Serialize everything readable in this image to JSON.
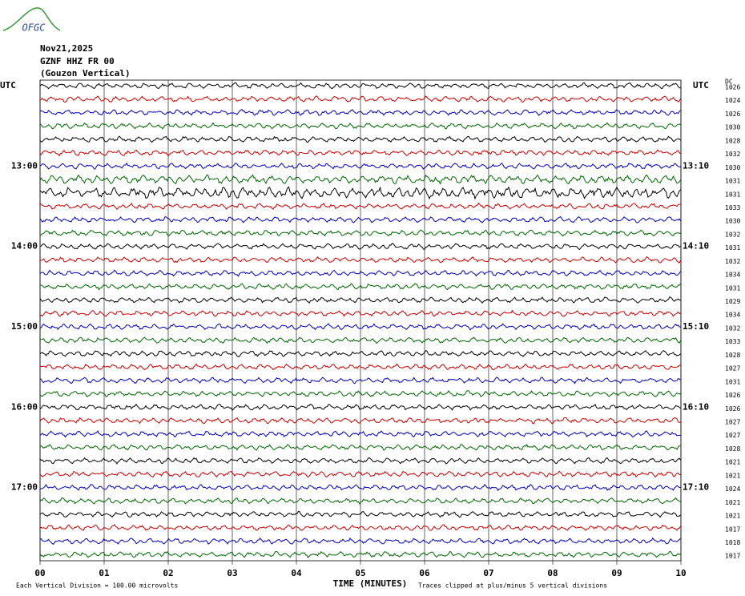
{
  "header": {
    "logo": "OFGC",
    "date": "Nov21,2025",
    "station": "GZNF HHZ FR 00",
    "location": "(Gouzon Vertical)"
  },
  "plot": {
    "left_label": "UTC",
    "right_label": "UTC",
    "dc_label": "DC",
    "left_hours": [
      "13:00",
      "14:00",
      "15:00",
      "16:00",
      "17:00"
    ],
    "right_hours": [
      "13:10",
      "14:10",
      "15:10",
      "16:10",
      "17:10"
    ],
    "trace_colors": [
      "#000000",
      "#cc0000",
      "#0000bb",
      "#006600"
    ],
    "dc_offsets": [
      1026,
      1024,
      1026,
      1030,
      1028,
      1032,
      1030,
      1031,
      1031,
      1033,
      1030,
      1032,
      1031,
      1032,
      1034,
      1031,
      1029,
      1034,
      1032,
      1033,
      1028,
      1027,
      1031,
      1026,
      1026,
      1027,
      1027,
      1028,
      1021,
      1021,
      1024,
      1021,
      1021,
      1017,
      1018,
      1017
    ],
    "xlim": [
      0,
      10
    ],
    "xticks": [
      {
        "value": 0,
        "label": "00"
      },
      {
        "value": 1,
        "label": "01"
      },
      {
        "value": 2,
        "label": "02"
      },
      {
        "value": 3,
        "label": "03"
      },
      {
        "value": 4,
        "label": "04"
      },
      {
        "value": 5,
        "label": "05"
      },
      {
        "value": 6,
        "label": "06"
      },
      {
        "value": 7,
        "label": "07"
      },
      {
        "value": 8,
        "label": "08"
      },
      {
        "value": 9,
        "label": "09"
      },
      {
        "value": 10,
        "label": "10"
      }
    ],
    "x_label": "TIME (MINUTES)",
    "scale_note": "Each Vertical Division =  100.00 microvolts",
    "clip_note": "Traces clipped at plus/minus 5 vertical divisions"
  }
}
